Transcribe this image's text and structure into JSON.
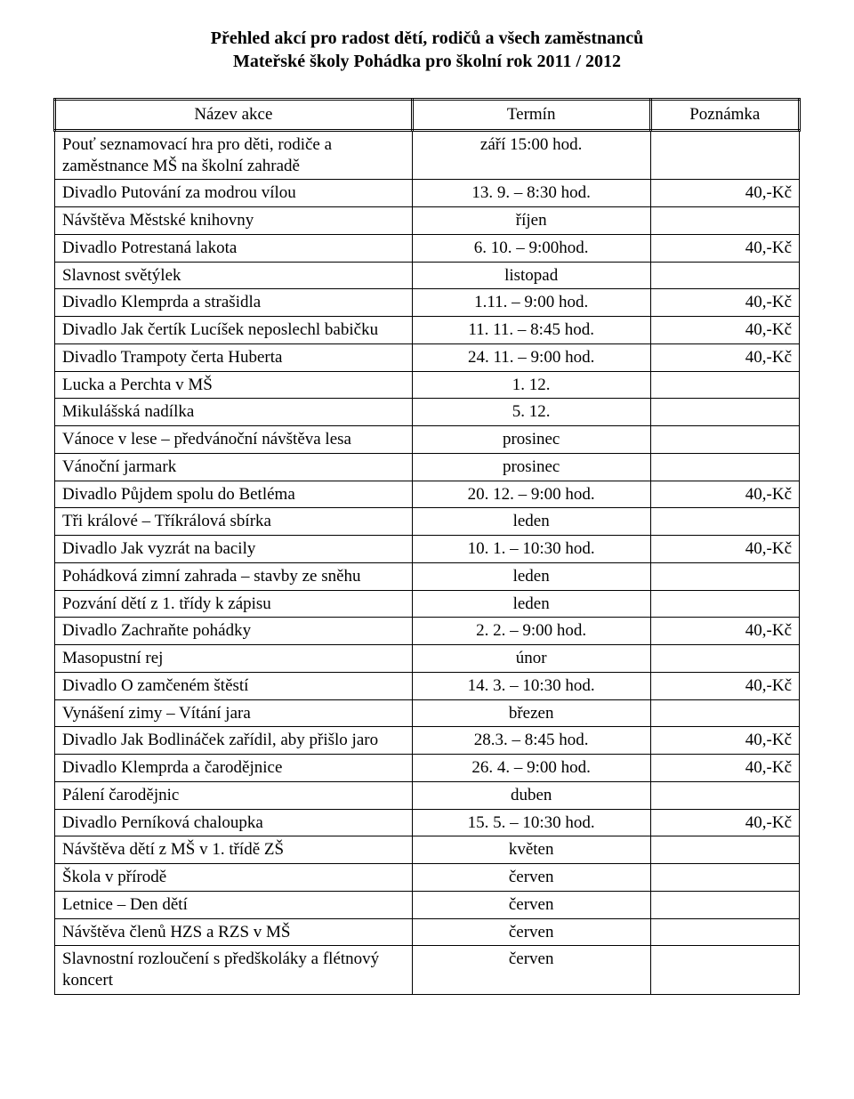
{
  "page": {
    "title": "Přehled akcí pro radost dětí, rodičů a všech zaměstnanců",
    "subtitle": "Mateřské školy Pohádka pro školní rok 2011 / 2012"
  },
  "table": {
    "headers": [
      "Název akce",
      "Termín",
      "Poznámka"
    ],
    "column_align": [
      "left",
      "center",
      "right"
    ],
    "border_color": "#000000",
    "font_size_pt": 14,
    "rows": [
      {
        "name": "Pouť seznamovací hra pro děti, rodiče a zaměstnance MŠ na školní zahradě",
        "term": "září 15:00 hod.",
        "note": ""
      },
      {
        "name": "Divadlo Putování za modrou vílou",
        "term": "13. 9. – 8:30 hod.",
        "note": "40,-Kč"
      },
      {
        "name": "Návštěva  Městské knihovny",
        "term": "říjen",
        "note": ""
      },
      {
        "name": "Divadlo Potrestaná lakota",
        "term": "6. 10. – 9:00hod.",
        "note": "40,-Kč"
      },
      {
        "name": "Slavnost světýlek",
        "term": "listopad",
        "note": ""
      },
      {
        "name": "Divadlo Klemprda a strašidla",
        "term": "1.11. –  9:00 hod.",
        "note": "40,-Kč"
      },
      {
        "name": "Divadlo Jak čertík Lucíšek neposlechl babičku",
        "term": "11. 11. – 8:45 hod.",
        "note": "40,-Kč"
      },
      {
        "name": "Divadlo Trampoty čerta Huberta",
        "term": "24. 11. – 9:00 hod.",
        "note": "40,-Kč"
      },
      {
        "name": "Lucka a Perchta v MŠ",
        "term": "1. 12.",
        "note": ""
      },
      {
        "name": "Mikulášská nadílka",
        "term": "5. 12.",
        "note": ""
      },
      {
        "name": "Vánoce v lese – předvánoční návštěva lesa",
        "term": "prosinec",
        "note": ""
      },
      {
        "name": "Vánoční jarmark",
        "term": "prosinec",
        "note": ""
      },
      {
        "name": "Divadlo Půjdem spolu do Betléma",
        "term": "20. 12. – 9:00 hod.",
        "note": "40,-Kč"
      },
      {
        "name": "Tři králové – Tříkrálová sbírka",
        "term": "leden",
        "note": ""
      },
      {
        "name": "Divadlo Jak vyzrát na bacily",
        "term": "10. 1. – 10:30 hod.",
        "note": "40,-Kč"
      },
      {
        "name": "Pohádková zimní zahrada – stavby ze sněhu",
        "term": "leden",
        "note": ""
      },
      {
        "name": "Pozvání dětí z 1. třídy k zápisu",
        "term": "leden",
        "note": ""
      },
      {
        "name": "Divadlo Zachraňte pohádky",
        "term": "2. 2. – 9:00 hod.",
        "note": "40,-Kč"
      },
      {
        "name": "Masopustní rej",
        "term": "únor",
        "note": ""
      },
      {
        "name": "Divadlo O zamčeném štěstí",
        "term": "14. 3. – 10:30 hod.",
        "note": "40,-Kč"
      },
      {
        "name": "Vynášení zimy – Vítání jara",
        "term": "březen",
        "note": ""
      },
      {
        "name": "Divadlo Jak Bodlináček zařídil, aby přišlo jaro",
        "term": "28.3. – 8:45 hod.",
        "note": "40,-Kč"
      },
      {
        "name": "Divadlo Klemprda a čarodějnice",
        "term": "26. 4. – 9:00 hod.",
        "note": "40,-Kč"
      },
      {
        "name": "Pálení čarodějnic",
        "term": "duben",
        "note": ""
      },
      {
        "name": "Divadlo Perníková chaloupka",
        "term": "15. 5. – 10:30 hod.",
        "note": "40,-Kč"
      },
      {
        "name": "Návštěva dětí z MŠ v 1. třídě ZŠ",
        "term": "květen",
        "note": ""
      },
      {
        "name": "Škola v přírodě",
        "term": "červen",
        "note": ""
      },
      {
        "name": "Letnice – Den dětí",
        "term": "červen",
        "note": ""
      },
      {
        "name": "Návštěva členů HZS a RZS  v MŠ",
        "term": "červen",
        "note": ""
      },
      {
        "name": "Slavnostní rozloučení s předškoláky a flétnový koncert",
        "term": "červen",
        "note": ""
      }
    ]
  }
}
